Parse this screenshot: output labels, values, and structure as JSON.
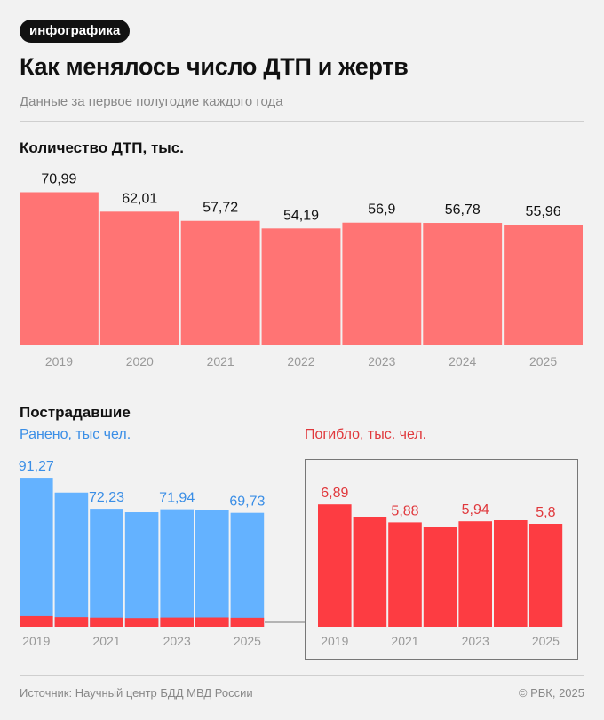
{
  "header": {
    "badge": "инфографика",
    "title": "Как менялось число ДТП и жертв",
    "subtitle": "Данные за первое полугодие каждого года"
  },
  "colors": {
    "accidents": "#ff7474",
    "injured": "#64b2ff",
    "injured_label": "#3a8ee6",
    "killed": "#fd3c42",
    "killed_label": "#e0383c",
    "tick": "#999999",
    "box": "#777777"
  },
  "chart_data": [
    {
      "type": "bar",
      "title": "Количество ДТП, тыс.",
      "categories": [
        "2019",
        "2020",
        "2021",
        "2022",
        "2023",
        "2024",
        "2025"
      ],
      "values": [
        70.99,
        62.01,
        57.72,
        54.19,
        56.9,
        56.78,
        55.96
      ],
      "value_labels": [
        "70,99",
        "62,01",
        "57,72",
        "54,19",
        "56,9",
        "56,78",
        "55,96"
      ]
    },
    {
      "type": "bar",
      "title": "Пострадавшие",
      "series_label": "Ранено, тыс чел.",
      "categories": [
        "2019",
        "2020",
        "2021",
        "2022",
        "2023",
        "2024",
        "2025"
      ],
      "tick_labels": [
        "2019",
        "",
        "2021",
        "",
        "2023",
        "",
        "2025"
      ],
      "values": [
        91.27,
        82.2,
        72.23,
        70.1,
        71.94,
        71.4,
        69.73
      ],
      "value_labels": [
        "91,27",
        "",
        "72,23",
        "",
        "71,94",
        "",
        "69,73"
      ],
      "overlay_values": [
        6.89,
        6.2,
        5.88,
        5.6,
        5.94,
        6.0,
        5.8
      ]
    },
    {
      "type": "bar",
      "series_label": "Погибло, тыс. чел.",
      "categories": [
        "2019",
        "2020",
        "2021",
        "2022",
        "2023",
        "2024",
        "2025"
      ],
      "tick_labels": [
        "2019",
        "",
        "2021",
        "",
        "2023",
        "",
        "2025"
      ],
      "values": [
        6.89,
        6.2,
        5.88,
        5.6,
        5.94,
        6.0,
        5.8
      ],
      "value_labels": [
        "6,89",
        "",
        "5,88",
        "",
        "5,94",
        "",
        "5,8"
      ]
    }
  ],
  "footer": {
    "source": "Источник: Научный центр БДД МВД России",
    "copyright": "© РБК, 2025"
  }
}
